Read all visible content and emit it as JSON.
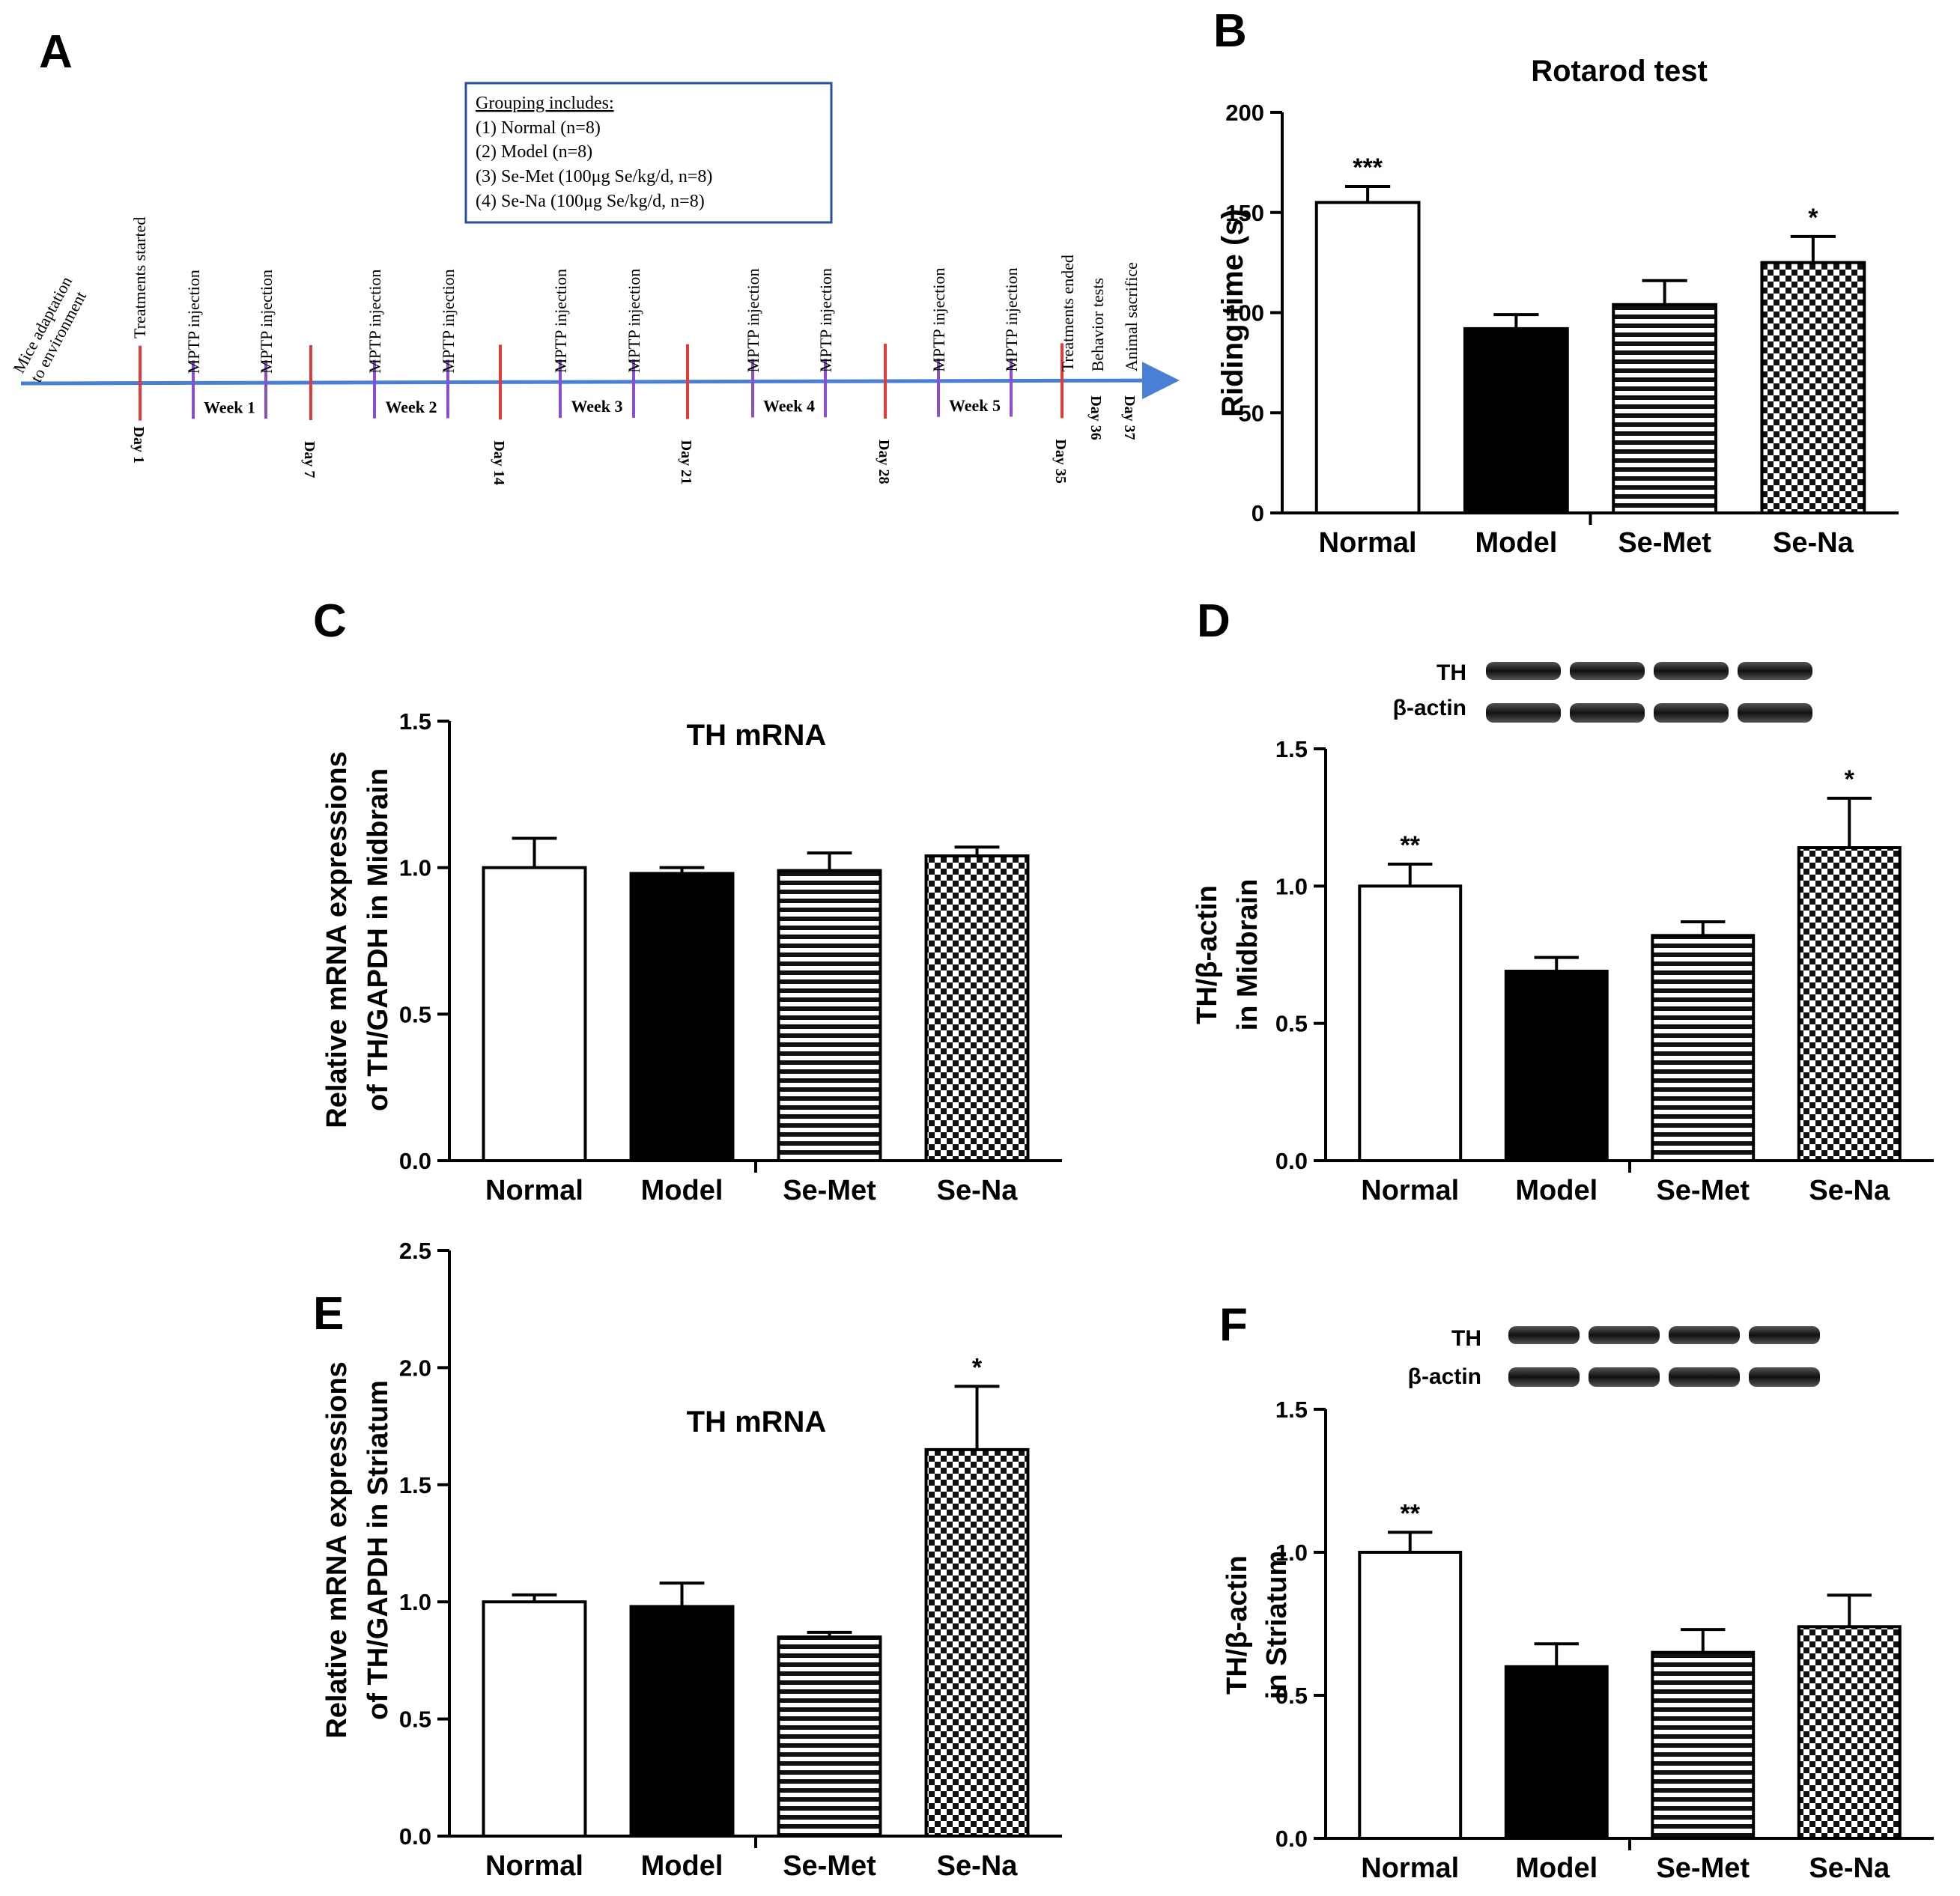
{
  "panel_letters": [
    "A",
    "B",
    "C",
    "D",
    "E",
    "F"
  ],
  "timeline": {
    "grouping": {
      "heading": "Grouping includes:",
      "items": [
        "(1) Normal (n=8)",
        "(2) Model (n=8)",
        "(3) Se-Met (100μg Se/kg/d, n=8)",
        "(4) Se-Na (100μg Se/kg/d, n=8)"
      ]
    },
    "adaptation_label": [
      "Mice adaptation",
      "to environment"
    ],
    "treatments_started": "Treatments started",
    "injection_label": "MPTP injection",
    "weeks": [
      "Week 1",
      "Week 2",
      "Week 3",
      "Week 4",
      "Week 5"
    ],
    "days": [
      "Day 1",
      "Day 7",
      "Day 14",
      "Day 21",
      "Day 28",
      "Day 35"
    ],
    "end_events": [
      {
        "event": "Treatments ended",
        "day": "Day 35"
      },
      {
        "event": "Behavior tests",
        "day": "Day 36"
      },
      {
        "event": "Animal sacrifice",
        "day": "Day 37"
      }
    ]
  },
  "chart_data": [
    {
      "panel": "B",
      "type": "bar",
      "title": "Rotarod test",
      "ylabel": "Riding time (s)",
      "ylim": [
        0,
        200
      ],
      "ticks": [
        "0",
        "50",
        "100",
        "150",
        "200"
      ],
      "categories": [
        "Normal",
        "Model",
        "Se-Met",
        "Se-Na"
      ],
      "values": [
        155,
        92,
        104,
        125
      ],
      "errors": [
        8,
        7,
        12,
        13
      ],
      "significance": [
        "***",
        "",
        "",
        "*"
      ]
    },
    {
      "panel": "C",
      "type": "bar",
      "title": "TH mRNA",
      "ylabel": [
        "Relative mRNA expressions",
        "of TH/GAPDH in Midbrain"
      ],
      "ylim": [
        0,
        1.5
      ],
      "ticks": [
        "0.0",
        "0.5",
        "1.0",
        "1.5"
      ],
      "categories": [
        "Normal",
        "Model",
        "Se-Met",
        "Se-Na"
      ],
      "values": [
        1.0,
        0.98,
        0.99,
        1.04
      ],
      "errors": [
        0.1,
        0.02,
        0.06,
        0.03
      ],
      "significance": [
        "",
        "",
        "",
        ""
      ]
    },
    {
      "panel": "D",
      "type": "bar",
      "title": "",
      "ylabel": [
        "TH/β-actin",
        "in Midbrain"
      ],
      "ylim": [
        0,
        1.5
      ],
      "ticks": [
        "0.0",
        "0.5",
        "1.0",
        "1.5"
      ],
      "categories": [
        "Normal",
        "Model",
        "Se-Met",
        "Se-Na"
      ],
      "values": [
        1.0,
        0.69,
        0.82,
        1.14
      ],
      "errors": [
        0.08,
        0.05,
        0.05,
        0.18
      ],
      "significance": [
        "**",
        "",
        "",
        "*"
      ],
      "blot_labels": [
        "TH",
        "β-actin"
      ]
    },
    {
      "panel": "E",
      "type": "bar",
      "title": "TH mRNA",
      "ylabel": [
        "Relative mRNA expressions",
        "of TH/GAPDH in Striatum"
      ],
      "ylim": [
        0,
        2.5
      ],
      "ticks": [
        "0.0",
        "0.5",
        "1.0",
        "1.5",
        "2.0",
        "2.5"
      ],
      "categories": [
        "Normal",
        "Model",
        "Se-Met",
        "Se-Na"
      ],
      "values": [
        1.0,
        0.98,
        0.85,
        1.65
      ],
      "errors": [
        0.03,
        0.1,
        0.02,
        0.27
      ],
      "significance": [
        "",
        "",
        "",
        "*"
      ]
    },
    {
      "panel": "F",
      "type": "bar",
      "title": "",
      "ylabel": [
        "TH/β-actin",
        "in Striatum"
      ],
      "ylim": [
        0,
        1.5
      ],
      "ticks": [
        "0.0",
        "0.5",
        "1.0",
        "1.5"
      ],
      "categories": [
        "Normal",
        "Model",
        "Se-Met",
        "Se-Na"
      ],
      "values": [
        1.0,
        0.6,
        0.65,
        0.74
      ],
      "errors": [
        0.07,
        0.08,
        0.08,
        0.11
      ],
      "significance": [
        "**",
        "",
        "",
        ""
      ],
      "blot_labels": [
        "TH",
        "β-actin"
      ]
    }
  ]
}
